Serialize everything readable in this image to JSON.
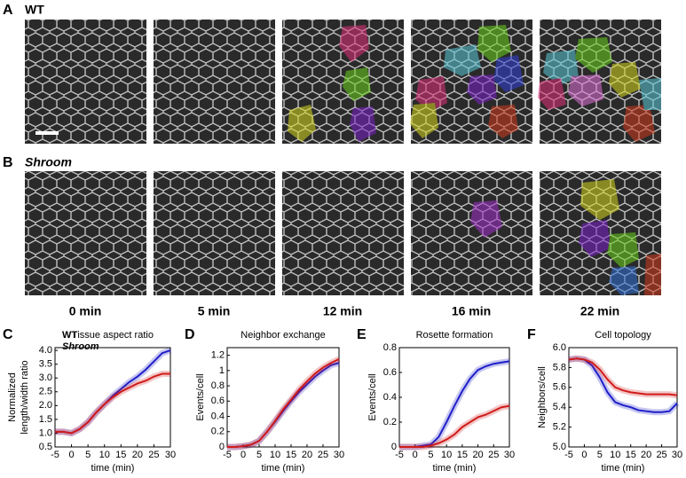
{
  "panel_labels": [
    "A",
    "B",
    "C",
    "D",
    "E",
    "F"
  ],
  "row_labels": [
    "WT",
    "Shroom"
  ],
  "time_labels": [
    "0 min",
    "5 min",
    "12 min",
    "16 min",
    "22 min"
  ],
  "chart_data": [
    {
      "type": "line",
      "title": "Tissue aspect ratio",
      "xlabel": "time (min)",
      "ylabel": [
        "Normalized",
        "length/width ratio"
      ],
      "x": [
        -5,
        -2.5,
        0,
        2.5,
        5,
        7.5,
        10,
        12.5,
        15,
        17.5,
        20,
        22.5,
        25,
        27.5,
        30
      ],
      "xlim": [
        -5,
        30
      ],
      "xticks": [
        -5,
        0,
        5,
        10,
        15,
        20,
        25,
        30
      ],
      "ylim": [
        0.5,
        4.1
      ],
      "yticks": [
        {
          "value": 0.5,
          "label": "0.5"
        },
        {
          "value": 1,
          "label": "1.0"
        },
        {
          "value": 1.5,
          "label": "1.5"
        },
        {
          "value": 2,
          "label": "2.0"
        },
        {
          "value": 2.5,
          "label": "2.5"
        },
        {
          "value": 3,
          "label": "3.0"
        },
        {
          "value": 3.5,
          "label": "3.5"
        },
        {
          "value": 4,
          "label": "4.0"
        }
      ],
      "series": [
        {
          "name": "WT",
          "color": "#1f1fc8",
          "values": [
            1.05,
            1.05,
            1.0,
            1.15,
            1.4,
            1.75,
            2.05,
            2.35,
            2.6,
            2.85,
            3.05,
            3.3,
            3.6,
            3.9,
            4.0
          ]
        },
        {
          "name": "Shroom",
          "color": "#d01c1c",
          "values": [
            1.05,
            1.05,
            1.0,
            1.15,
            1.4,
            1.75,
            2.05,
            2.3,
            2.5,
            2.65,
            2.8,
            2.9,
            3.05,
            3.15,
            3.15
          ]
        }
      ]
    },
    {
      "type": "line",
      "title": "Neighbor exchange",
      "xlabel": "time (min)",
      "ylabel": [
        "Events/cell"
      ],
      "x": [
        -5,
        -2.5,
        0,
        2.5,
        5,
        7.5,
        10,
        12.5,
        15,
        17.5,
        20,
        22.5,
        25,
        27.5,
        30
      ],
      "xlim": [
        -5,
        30
      ],
      "xticks": [
        -5,
        0,
        5,
        10,
        15,
        20,
        25,
        30
      ],
      "ylim": [
        0,
        1.3
      ],
      "yticks": [
        0,
        0.2,
        0.4,
        0.6,
        0.8,
        1,
        1.2
      ],
      "series": [
        {
          "color": "#1f1fc8",
          "values": [
            0,
            0,
            0.01,
            0.03,
            0.08,
            0.2,
            0.33,
            0.47,
            0.6,
            0.72,
            0.82,
            0.92,
            1.0,
            1.07,
            1.1
          ]
        },
        {
          "color": "#d01c1c",
          "values": [
            0,
            0,
            0.01,
            0.03,
            0.08,
            0.2,
            0.34,
            0.49,
            0.62,
            0.75,
            0.86,
            0.96,
            1.04,
            1.1,
            1.15
          ]
        }
      ]
    },
    {
      "type": "line",
      "title": "Rosette formation",
      "xlabel": "time (min)",
      "ylabel": [
        "Events/cell"
      ],
      "x": [
        -5,
        -2.5,
        0,
        2.5,
        5,
        7.5,
        10,
        12.5,
        15,
        17.5,
        20,
        22.5,
        25,
        27.5,
        30
      ],
      "xlim": [
        -5,
        30
      ],
      "xticks": [
        -5,
        0,
        5,
        10,
        15,
        20,
        25,
        30
      ],
      "ylim": [
        0,
        0.8
      ],
      "yticks": [
        0,
        0.2,
        0.4,
        0.6,
        0.8
      ],
      "series": [
        {
          "color": "#1f1fc8",
          "values": [
            0,
            0,
            0,
            0.01,
            0.02,
            0.08,
            0.2,
            0.33,
            0.45,
            0.55,
            0.62,
            0.65,
            0.67,
            0.68,
            0.69
          ]
        },
        {
          "color": "#d01c1c",
          "values": [
            0,
            0,
            0,
            0,
            0.01,
            0.03,
            0.06,
            0.1,
            0.16,
            0.2,
            0.24,
            0.26,
            0.29,
            0.32,
            0.33
          ]
        }
      ]
    },
    {
      "type": "line",
      "title": "Cell topology",
      "xlabel": "time (min)",
      "ylabel": [
        "Neighbors/cell"
      ],
      "x": [
        -5,
        -2.5,
        0,
        2.5,
        5,
        7.5,
        10,
        12.5,
        15,
        17.5,
        20,
        22.5,
        25,
        27.5,
        30
      ],
      "xlim": [
        -5,
        30
      ],
      "xticks": [
        -5,
        0,
        5,
        10,
        15,
        20,
        25,
        30
      ],
      "ylim": [
        5.0,
        6.0
      ],
      "yticks": [
        {
          "value": 5,
          "label": "5.0"
        },
        {
          "value": 5.2,
          "label": "5.2"
        },
        {
          "value": 5.4,
          "label": "5.4"
        },
        {
          "value": 5.6,
          "label": "5.6"
        },
        {
          "value": 5.8,
          "label": "5.8"
        },
        {
          "value": 6,
          "label": "6.0"
        }
      ],
      "series": [
        {
          "color": "#1f1fc8",
          "values": [
            5.88,
            5.89,
            5.88,
            5.82,
            5.7,
            5.55,
            5.45,
            5.42,
            5.4,
            5.37,
            5.36,
            5.35,
            5.35,
            5.36,
            5.44
          ]
        },
        {
          "color": "#d01c1c",
          "values": [
            5.88,
            5.89,
            5.88,
            5.85,
            5.78,
            5.68,
            5.6,
            5.57,
            5.55,
            5.54,
            5.53,
            5.53,
            5.53,
            5.53,
            5.52
          ]
        }
      ]
    }
  ]
}
